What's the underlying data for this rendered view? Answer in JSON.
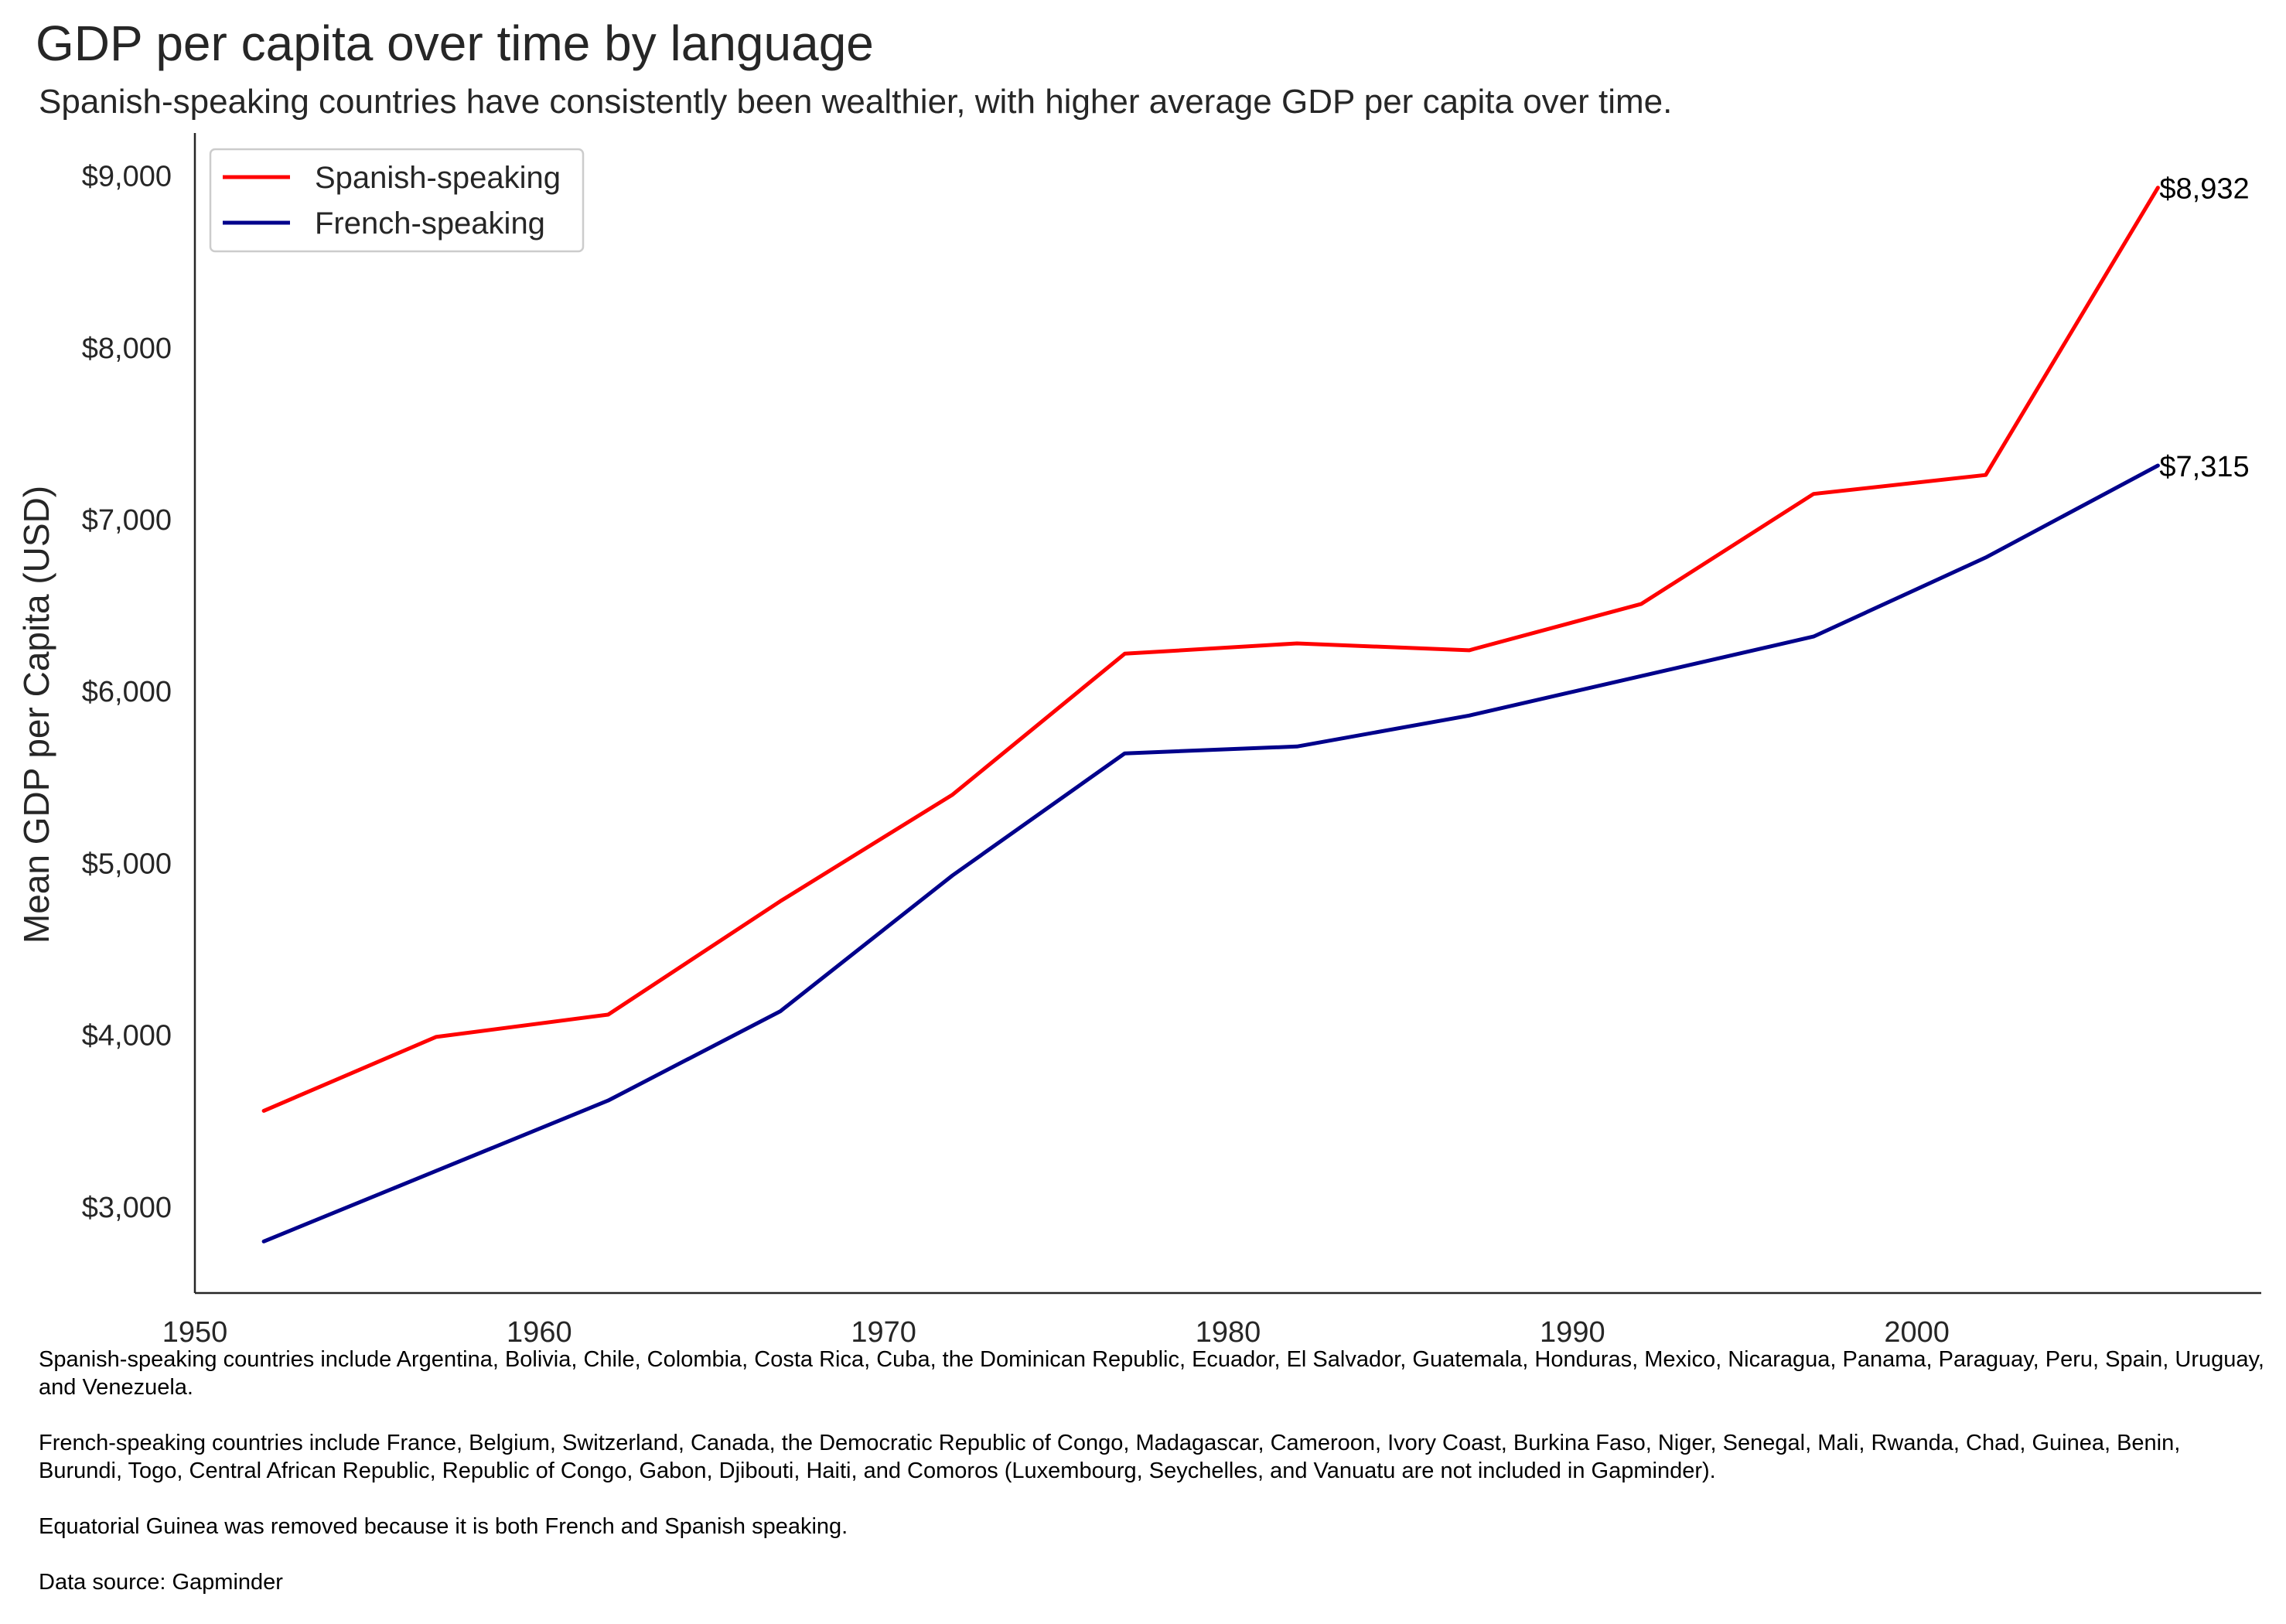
{
  "header": {
    "title": "GDP per capita over time by language",
    "subtitle": "Spanish-speaking countries have consistently been wealthier, with higher average GDP per capita over time."
  },
  "chart_data": {
    "type": "line",
    "title": "GDP per capita over time by language",
    "subtitle": "Spanish-speaking countries have consistently been wealthier, with higher average GDP per capita over time.",
    "xlabel": "",
    "ylabel": "Mean GDP per Capita (USD)",
    "xlim": [
      1950,
      2010
    ],
    "ylim": [
      2500,
      9250
    ],
    "x_ticks": [
      1950,
      1960,
      1970,
      1980,
      1990,
      2000
    ],
    "y_ticks": [
      3000,
      4000,
      5000,
      6000,
      7000,
      8000,
      9000
    ],
    "y_tick_labels": [
      "$3,000",
      "$4,000",
      "$5,000",
      "$6,000",
      "$7,000",
      "$8,000",
      "$9,000"
    ],
    "grid": false,
    "legend_position": "top-left",
    "x": [
      1952,
      1957,
      1962,
      1967,
      1972,
      1977,
      1982,
      1987,
      1992,
      1997,
      2002,
      2007
    ],
    "series": [
      {
        "name": "Spanish-speaking",
        "color": "#ff0000",
        "values": [
          3560,
          3990,
          4120,
          4780,
          5400,
          6220,
          6280,
          6240,
          6510,
          7150,
          7260,
          8932
        ],
        "end_label": "$8,932"
      },
      {
        "name": "French-speaking",
        "color": "#00008b",
        "values": [
          2800,
          3210,
          3620,
          4140,
          4930,
          5640,
          5680,
          5860,
          6090,
          6320,
          6780,
          7315
        ],
        "end_label": "$7,315"
      }
    ]
  },
  "footnotes": {
    "spanish_countries": "Spanish-speaking countries include Argentina, Bolivia, Chile, Colombia, Costa Rica, Cuba, the Dominican Republic, Ecuador, El Salvador, Guatemala, Honduras, Mexico, Nicaragua, Panama, Paraguay, Peru, Spain, Uruguay, and Venezuela.",
    "french_countries": "French-speaking countries include France, Belgium, Switzerland, Canada, the Democratic Republic of Congo, Madagascar, Cameroon, Ivory Coast, Burkina Faso, Niger, Senegal, Mali, Rwanda, Chad, Guinea, Benin, Burundi, Togo, Central African Republic, Republic of Congo, Gabon, Djibouti, Haiti, and Comoros (Luxembourg, Seychelles, and Vanuatu are not included in Gapminder).",
    "exclusion_note": "Equatorial Guinea was removed because it is both French and Spanish speaking.",
    "source": "Data source: Gapminder"
  }
}
